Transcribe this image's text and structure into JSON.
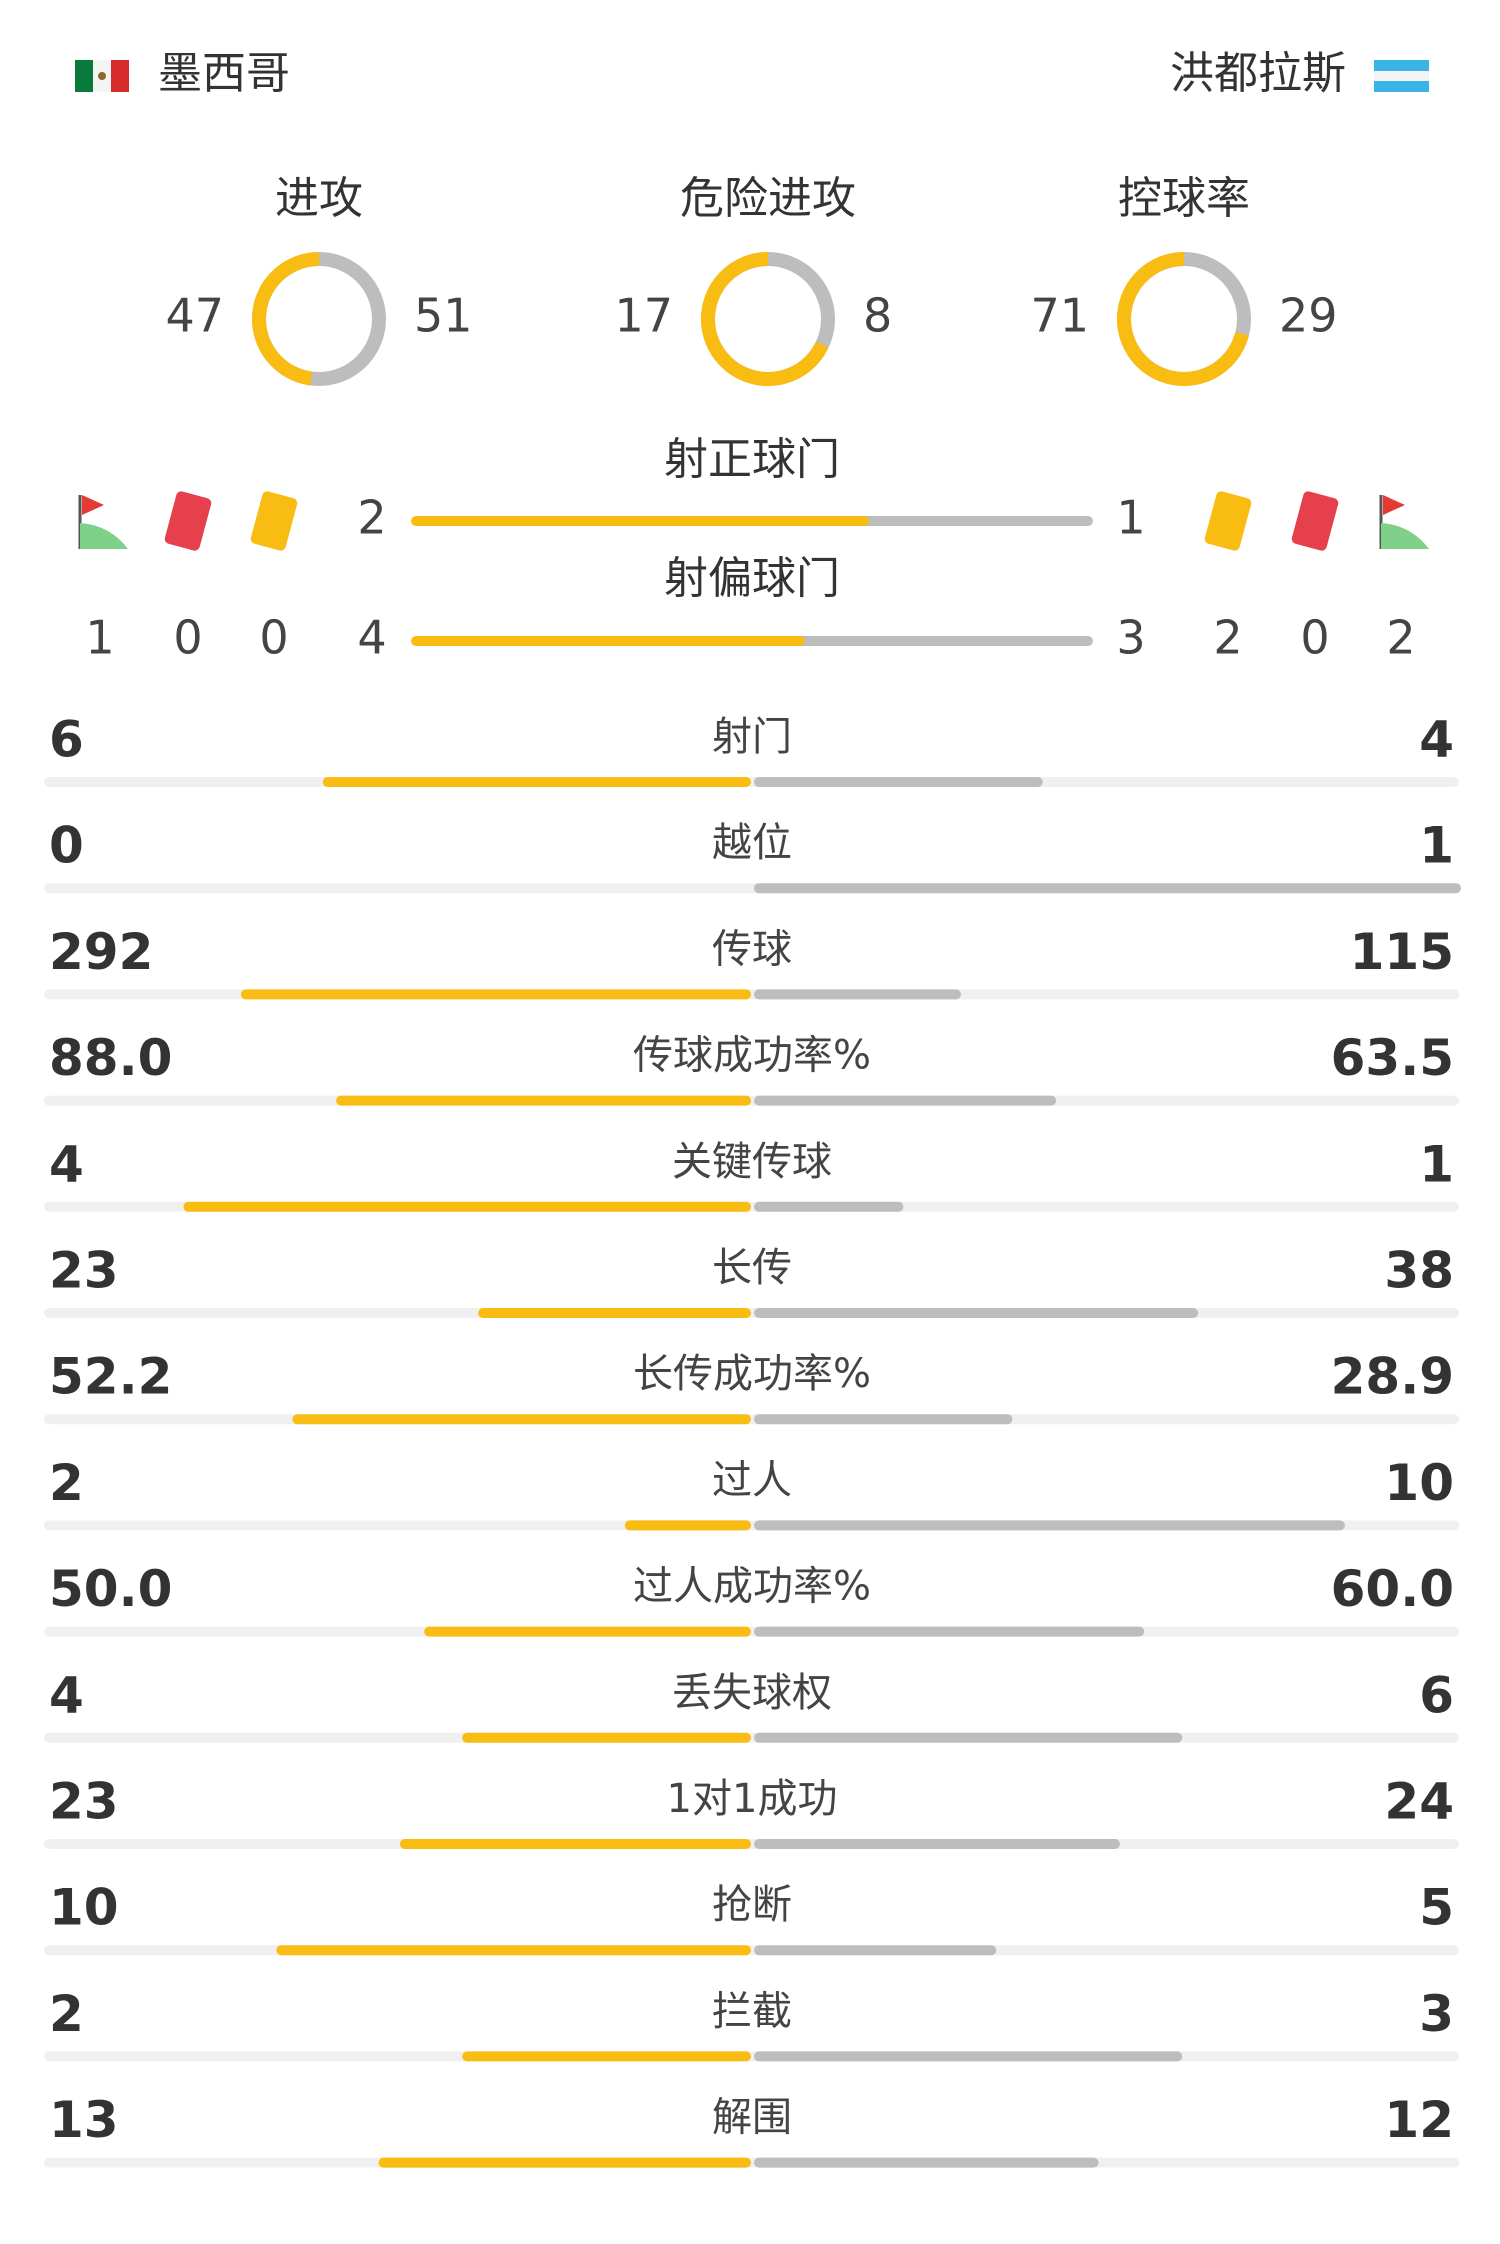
{
  "home": {
    "name": "墨西哥"
  },
  "away": {
    "name": "洪都拉斯"
  },
  "donuts": [
    {
      "label": "进攻",
      "home": "47",
      "away": "51"
    },
    {
      "label": "危险进攻",
      "home": "17",
      "away": "8"
    },
    {
      "label": "控球率",
      "home": "71",
      "away": "29"
    }
  ],
  "goal_bars": [
    {
      "label": "射正球门",
      "home": "2",
      "away": "1"
    },
    {
      "label": "射偏球门",
      "home": "4",
      "away": "3"
    }
  ],
  "home_events": {
    "corners": "1",
    "red_cards": "0",
    "yellow_cards": "0"
  },
  "away_events": {
    "yellow_cards": "2",
    "red_cards": "0",
    "corners": "2"
  },
  "stats": [
    {
      "label": "射门",
      "home": "6",
      "away": "4"
    },
    {
      "label": "越位",
      "home": "0",
      "away": "1"
    },
    {
      "label": "传球",
      "home": "292",
      "away": "115"
    },
    {
      "label": "传球成功率%",
      "home": "88.0",
      "away": "63.5"
    },
    {
      "label": "关键传球",
      "home": "4",
      "away": "1"
    },
    {
      "label": "长传",
      "home": "23",
      "away": "38"
    },
    {
      "label": "长传成功率%",
      "home": "52.2",
      "away": "28.9"
    },
    {
      "label": "过人",
      "home": "2",
      "away": "10"
    },
    {
      "label": "过人成功率%",
      "home": "50.0",
      "away": "60.0"
    },
    {
      "label": "丢失球权",
      "home": "4",
      "away": "6"
    },
    {
      "label": "1对1成功",
      "home": "23",
      "away": "24"
    },
    {
      "label": "抢断",
      "home": "10",
      "away": "5"
    },
    {
      "label": "拦截",
      "home": "2",
      "away": "3"
    },
    {
      "label": "解围",
      "home": "13",
      "away": "12"
    }
  ]
}
